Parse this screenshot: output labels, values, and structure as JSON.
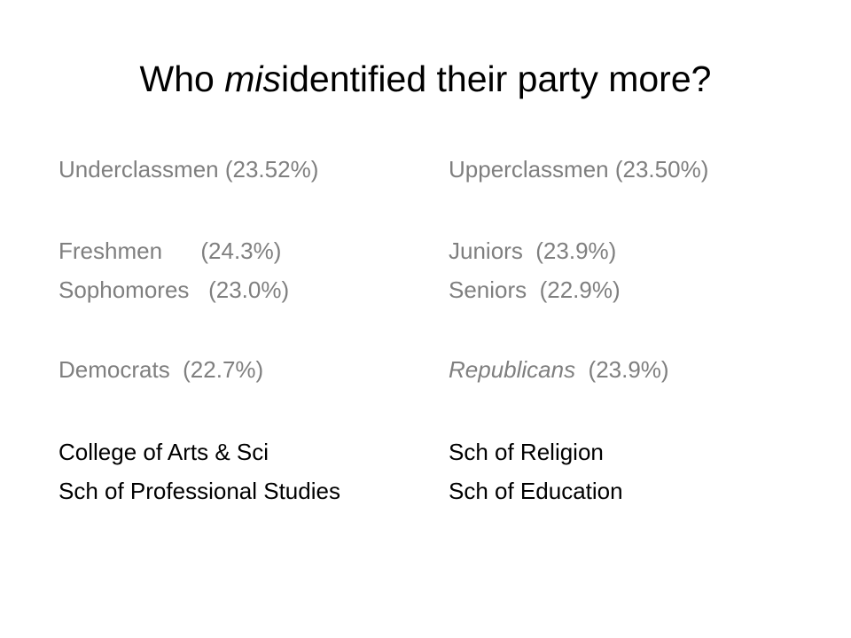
{
  "title": {
    "start": "Who ",
    "emphasis": "mis",
    "end": "identified their party more?"
  },
  "left": {
    "group": "Underclassmen (23.52%)",
    "year1": "Freshmen      (24.3%)",
    "year2": "Sophomores   (23.0%)",
    "party": "Democrats  (22.7%)",
    "school1": "College of Arts & Sci",
    "school2": "Sch of Professional Studies"
  },
  "right": {
    "group": "Upperclassmen (23.50%)",
    "year1": "Juniors  (23.9%)",
    "year2": "Seniors  (22.9%)",
    "party": {
      "name": "Republicans",
      "rate": "  (23.9%)"
    },
    "school1": "Sch of Religion",
    "school2": "Sch of Education"
  }
}
